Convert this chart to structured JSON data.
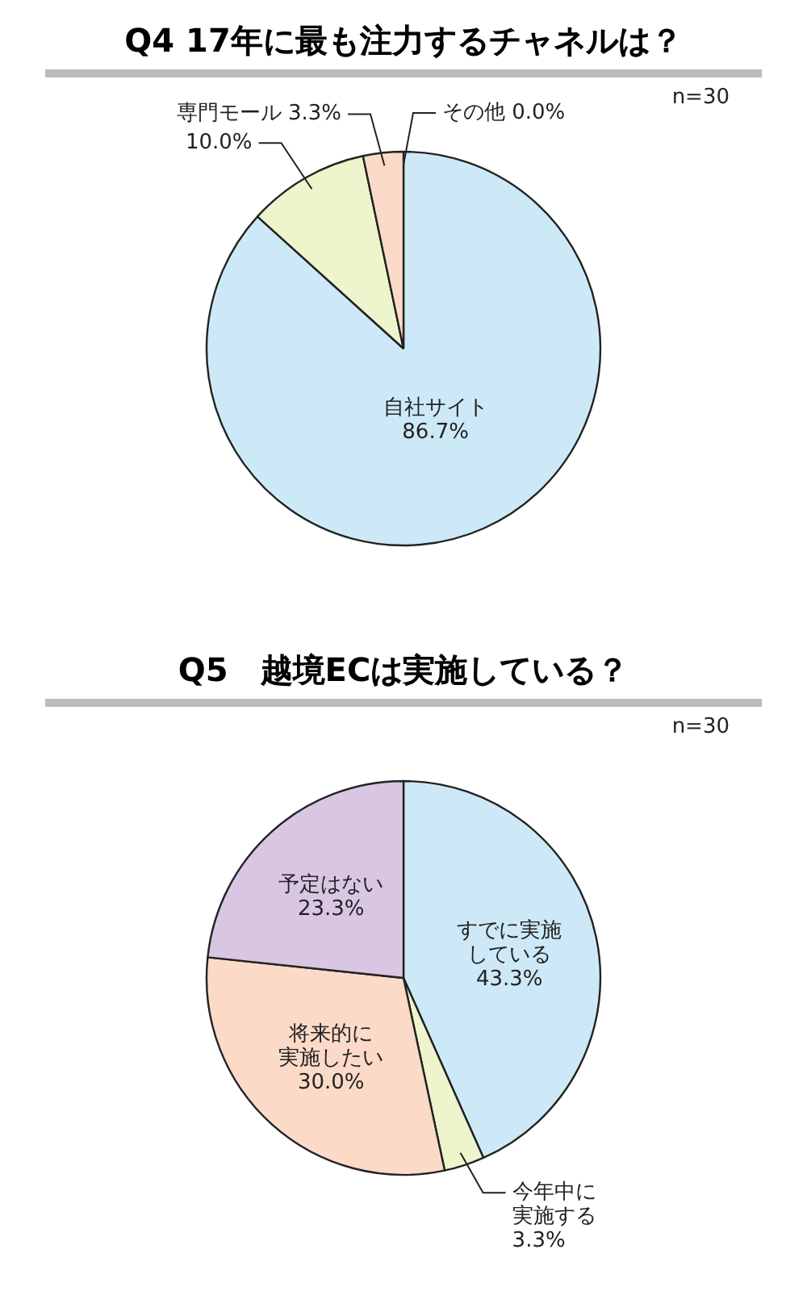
{
  "chart_data": [
    {
      "type": "pie",
      "title": "Q4 17年に最も注力するチャネルは？",
      "categories": [
        "自社サイト",
        null,
        "専門モール",
        "その他"
      ],
      "values": [
        86.7,
        10.0,
        3.3,
        0.0
      ],
      "value_labels": [
        "86.7%",
        "10.0%",
        "3.3%",
        "0.0%"
      ],
      "colors": [
        "#cde9f7",
        "#eef4cc",
        "#fbdac8",
        "#fbdac8"
      ],
      "annotations": [
        "n=30"
      ],
      "legend": false
    },
    {
      "type": "pie",
      "title": "Q5　越境ECは実施している？",
      "categories": [
        "すでに実施している",
        "今年中に実施する",
        "将来的に実施したい",
        "予定はない"
      ],
      "values": [
        43.3,
        3.3,
        30.0,
        23.3
      ],
      "value_labels": [
        "43.3%",
        "3.3%",
        "30.0%",
        "23.3%"
      ],
      "colors": [
        "#cde9f7",
        "#eef4cc",
        "#fbdac8",
        "#d9c6e2"
      ],
      "annotations": [
        "n=30"
      ],
      "legend": false
    }
  ]
}
